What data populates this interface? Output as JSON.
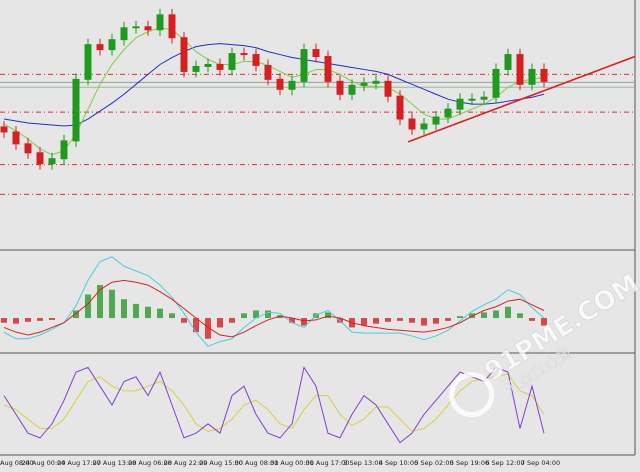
{
  "chart_data": {
    "type": "candlestick",
    "ylim": [
      0,
      250
    ],
    "up_color": "#1f9a1f",
    "down_color": "#d42020",
    "open": [
      122,
      117,
      105,
      96,
      85,
      90,
      108,
      170,
      205,
      200,
      210,
      222,
      223,
      220,
      235,
      212,
      178,
      183,
      185,
      180,
      196,
      195,
      184,
      170,
      160,
      168,
      200,
      193,
      168,
      155,
      164,
      166,
      168,
      153,
      130,
      120,
      125,
      132,
      140,
      150,
      150,
      152,
      180,
      195,
      165,
      180
    ],
    "high": [
      128,
      123,
      111,
      102,
      96,
      114,
      176,
      211,
      211,
      216,
      228,
      229,
      229,
      241,
      241,
      218,
      189,
      191,
      191,
      202,
      202,
      201,
      190,
      176,
      174,
      206,
      206,
      199,
      174,
      170,
      172,
      174,
      174,
      159,
      136,
      131,
      138,
      146,
      156,
      156,
      158,
      186,
      201,
      201,
      186,
      186
    ],
    "low": [
      111,
      99,
      90,
      79,
      79,
      84,
      102,
      164,
      194,
      194,
      204,
      216,
      214,
      214,
      206,
      172,
      172,
      177,
      174,
      174,
      189,
      178,
      164,
      154,
      154,
      162,
      187,
      162,
      149,
      149,
      158,
      160,
      147,
      124,
      114,
      114,
      119,
      126,
      134,
      144,
      144,
      146,
      174,
      159,
      159,
      162
    ],
    "close": [
      117,
      105,
      96,
      85,
      90,
      108,
      170,
      205,
      200,
      210,
      222,
      223,
      220,
      235,
      212,
      178,
      183,
      185,
      180,
      196,
      195,
      184,
      170,
      160,
      168,
      200,
      193,
      168,
      155,
      164,
      166,
      168,
      153,
      130,
      120,
      125,
      132,
      140,
      150,
      150,
      152,
      180,
      195,
      165,
      180,
      168
    ],
    "ma": [
      {
        "color": "#2030c8",
        "values": [
          130,
          128,
          126,
          125,
          124,
          123,
          124,
          130,
          138,
          146,
          155,
          165,
          175,
          185,
          192,
          198,
          203,
          205,
          206,
          205,
          204,
          202,
          198,
          195,
          192,
          190,
          188,
          186,
          184,
          182,
          180,
          178,
          175,
          170,
          165,
          160,
          155,
          150,
          147,
          145,
          145,
          146,
          148,
          150,
          152,
          155
        ]
      },
      {
        "color": "#7fcf3f",
        "values": [
          125,
          118,
          110,
          100,
          94,
          98,
          115,
          140,
          165,
          185,
          200,
          212,
          218,
          222,
          220,
          210,
          198,
          190,
          185,
          185,
          188,
          188,
          184,
          178,
          172,
          175,
          180,
          180,
          175,
          168,
          163,
          163,
          162,
          155,
          145,
          135,
          130,
          130,
          135,
          140,
          145,
          152,
          162,
          168,
          170,
          172
        ]
      }
    ],
    "levels": [
      {
        "value": 175,
        "color": "#d43030",
        "style": "dashed"
      },
      {
        "value": 137,
        "color": "#d43030",
        "style": "dashed"
      },
      {
        "value": 84,
        "color": "#d43030",
        "style": "dashed"
      },
      {
        "value": 54,
        "color": "#d43030",
        "style": "dashed"
      },
      {
        "value": 167,
        "color": "#9a9a9a",
        "style": "solid"
      },
      {
        "value": 162,
        "color": "#9ab89a",
        "style": "solid"
      }
    ],
    "trendline": {
      "color": "#e02020",
      "x": [
        33.67,
        52.58
      ],
      "values": [
        107,
        193
      ]
    },
    "macd": {
      "ylim": [
        -35,
        68
      ],
      "histogram_up": "#2a9a2a",
      "histogram_down": "#d42020",
      "histogram": [
        -5,
        -6,
        -4,
        -3,
        -2,
        0,
        8,
        25,
        35,
        30,
        20,
        15,
        12,
        10,
        5,
        -5,
        -15,
        -22,
        -10,
        -5,
        5,
        8,
        8,
        3,
        -5,
        -8,
        5,
        6,
        -5,
        -10,
        -8,
        -6,
        -4,
        -3,
        -5,
        -8,
        -6,
        -3,
        2,
        5,
        6,
        8,
        12,
        5,
        -3,
        -8
      ],
      "macd_color": "#40d0e0",
      "macd_line": [
        -15,
        -22,
        -22,
        -18,
        -12,
        -5,
        13,
        40,
        60,
        65,
        55,
        50,
        45,
        35,
        22,
        5,
        -15,
        -30,
        -25,
        -22,
        -10,
        0,
        6,
        5,
        -5,
        -10,
        3,
        8,
        -3,
        -15,
        -16,
        -16,
        -16,
        -16,
        -19,
        -23,
        -19,
        -13,
        -3,
        7,
        14,
        20,
        30,
        25,
        11,
        0
      ],
      "signal_color": "#e02020",
      "signal": [
        -10,
        -15,
        -18,
        -15,
        -10,
        -5,
        5,
        15,
        30,
        38,
        40,
        38,
        35,
        28,
        20,
        10,
        0,
        -10,
        -18,
        -20,
        -15,
        -8,
        -2,
        2,
        0,
        -3,
        -2,
        2,
        0,
        -5,
        -8,
        -10,
        -12,
        -13,
        -14,
        -15,
        -13,
        -10,
        -5,
        2,
        8,
        12,
        18,
        20,
        14,
        8
      ]
    },
    "stochastic": {
      "ylim": [
        0,
        100
      ],
      "k_color": "#8040d0",
      "k": [
        60,
        40,
        20,
        15,
        30,
        55,
        85,
        90,
        70,
        50,
        75,
        80,
        60,
        85,
        50,
        15,
        20,
        30,
        20,
        60,
        70,
        40,
        20,
        15,
        30,
        90,
        70,
        20,
        15,
        40,
        60,
        50,
        30,
        10,
        20,
        40,
        55,
        70,
        85,
        80,
        75,
        90,
        85,
        25,
        70,
        20
      ],
      "d_color": "#d8d040",
      "d": [
        50,
        45,
        35,
        25,
        25,
        35,
        55,
        75,
        80,
        70,
        65,
        65,
        70,
        75,
        65,
        50,
        30,
        22,
        25,
        35,
        50,
        55,
        45,
        30,
        25,
        45,
        60,
        60,
        40,
        28,
        35,
        48,
        48,
        35,
        22,
        25,
        35,
        50,
        65,
        75,
        78,
        80,
        83,
        65,
        60,
        40
      ]
    },
    "x_labels": [
      "Aug 08:00",
      "24 Aug 00:00",
      "24 Aug 17:00",
      "27 Aug 13:00",
      "28 Aug 06:00",
      "28 Aug 22:00",
      "29 Aug 15:00",
      "30 Aug 08:00",
      "31 Aug 00:00",
      "31 Aug 17:00",
      "3 Sep 13:00",
      "4 Sep 10:00",
      "5 Sep 02:00",
      "5 Sep 19:00",
      "6 Sep 12:00",
      "7 Sep 04:00"
    ],
    "watermark": {
      "text": "91PME.COM",
      "subtext": "汇金宝金属"
    }
  }
}
